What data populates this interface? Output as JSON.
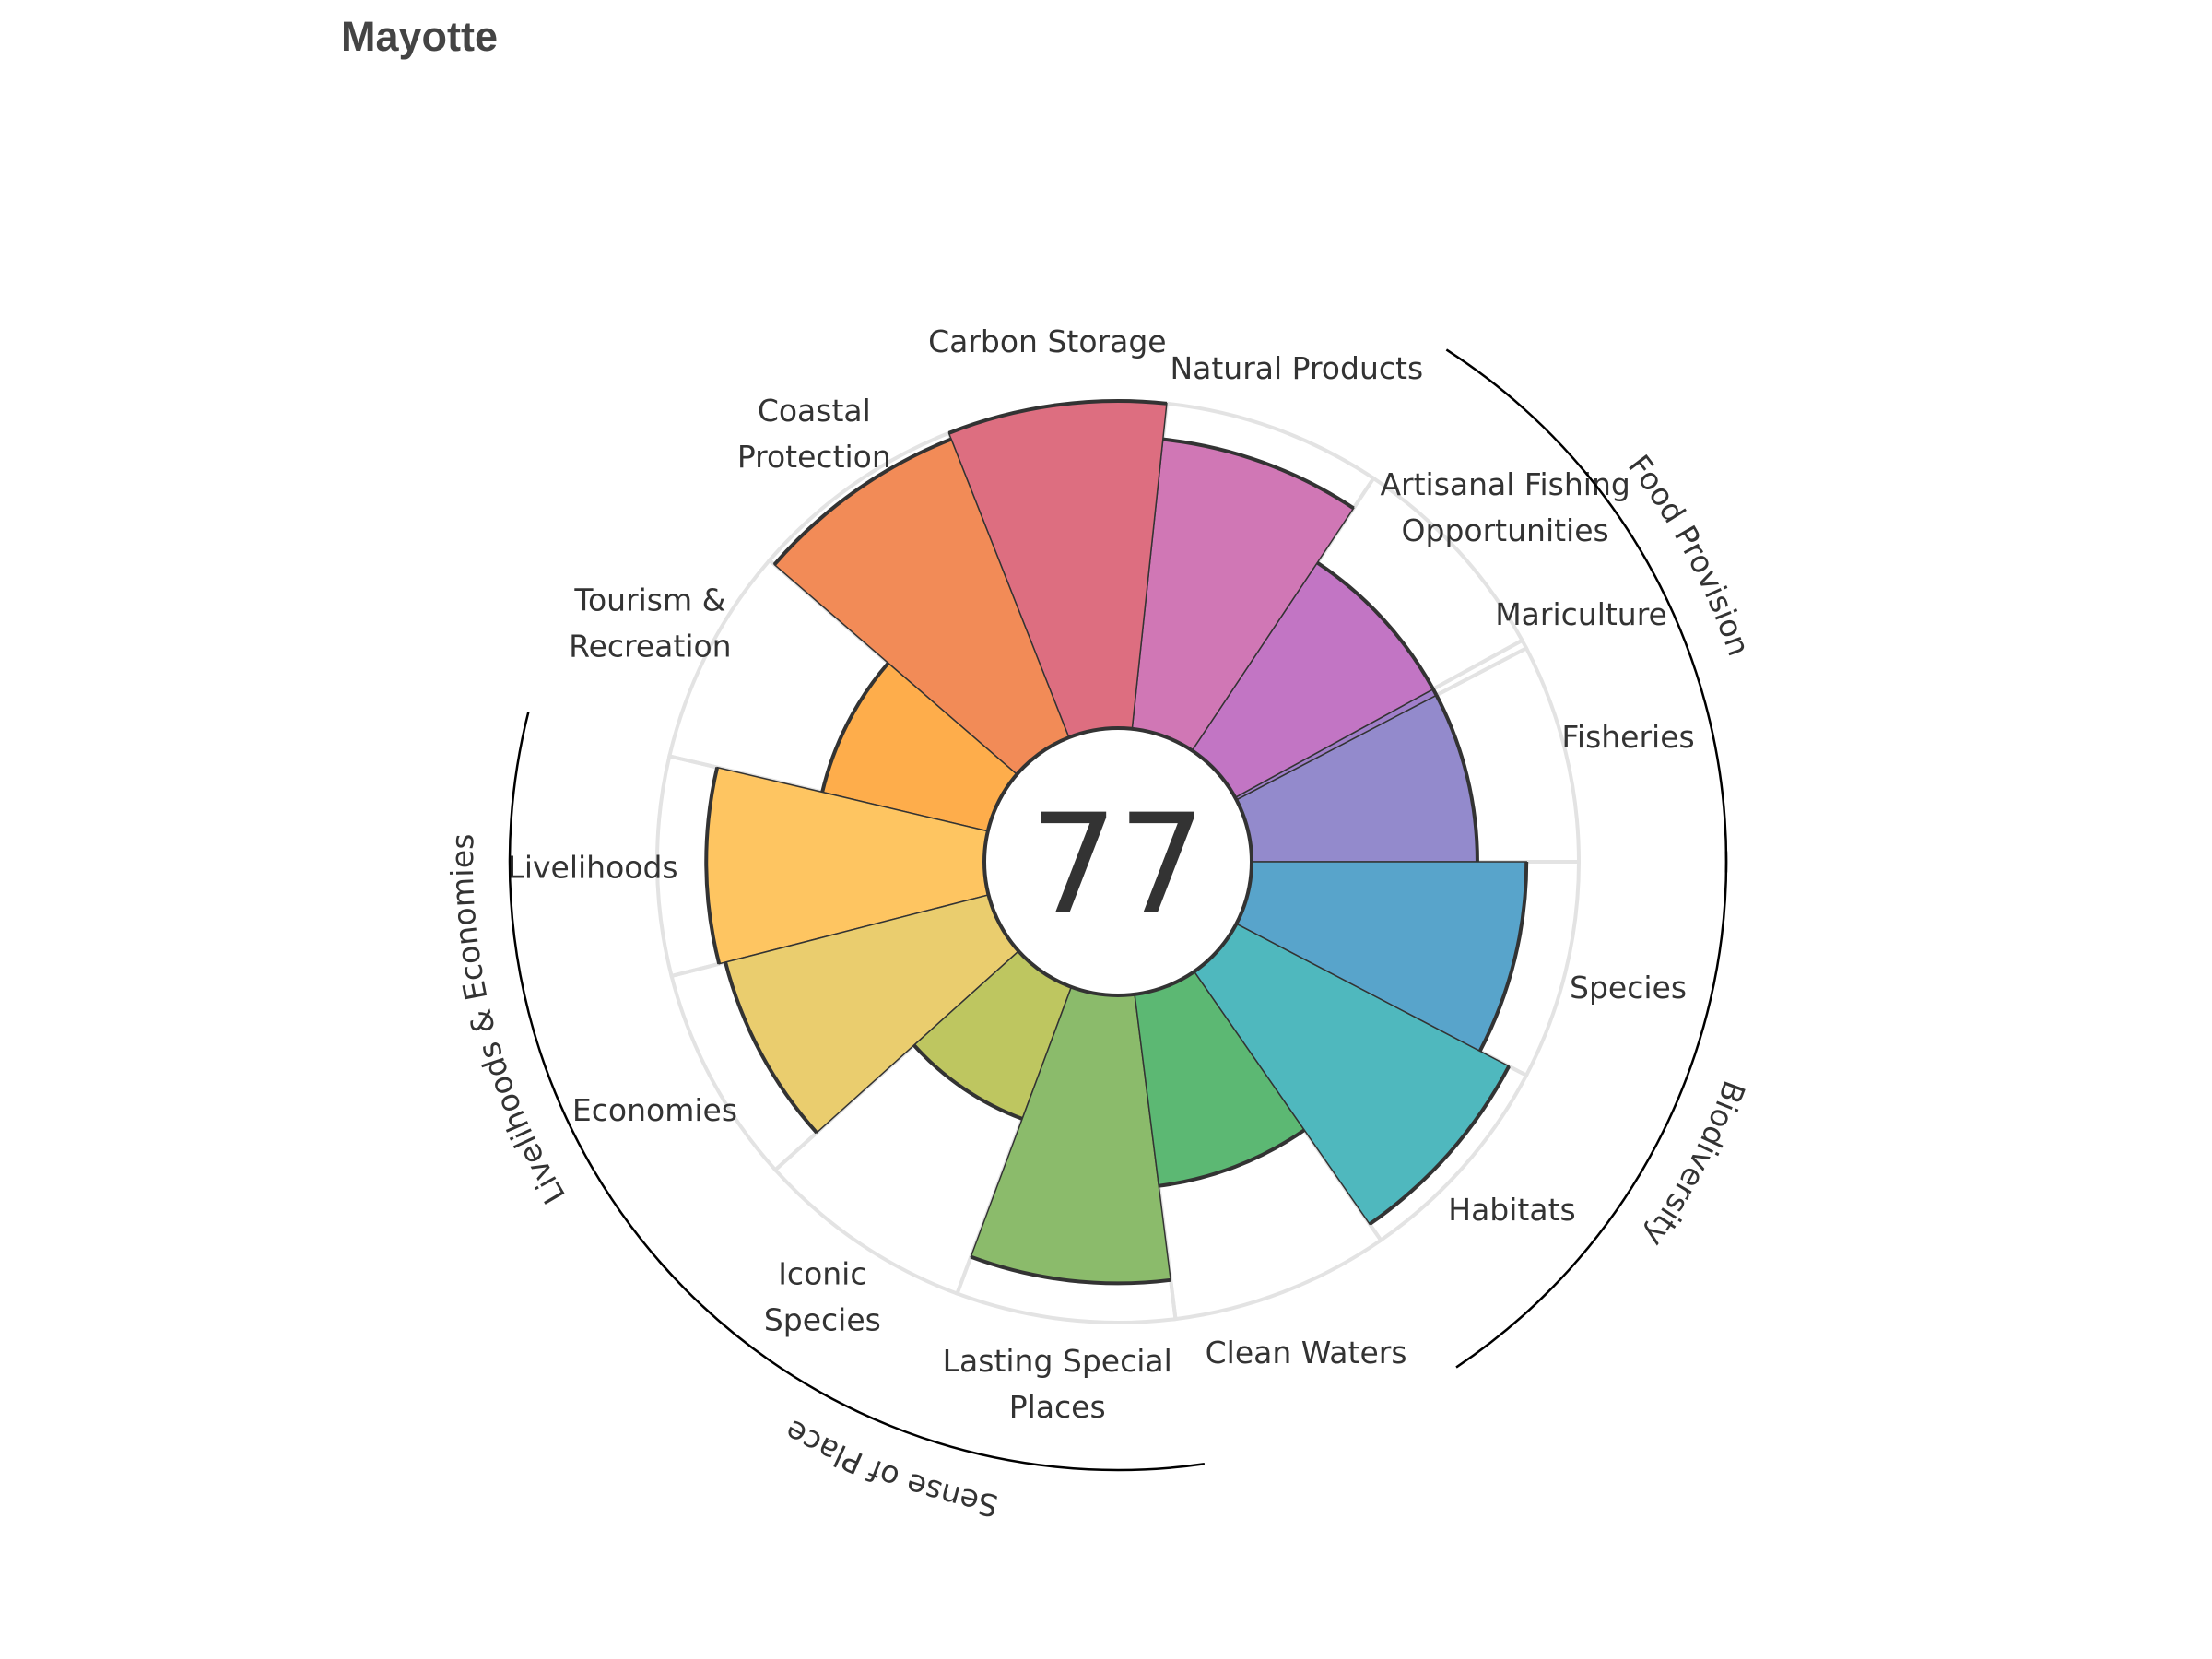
{
  "title": "Mayotte",
  "chart_data": {
    "type": "polar-bar",
    "title": "Mayotte",
    "center_score": "77",
    "rlim": [
      0,
      100
    ],
    "goals": [
      {
        "name": "Fisheries",
        "label": [
          "Fisheries"
        ],
        "value": 69,
        "weight": 1,
        "color": "#938ACC"
      },
      {
        "name": "Mariculture",
        "label": [
          "Mariculture"
        ],
        "value": 69,
        "weight": 0.04,
        "color": "#A07FCA"
      },
      {
        "name": "Artisanal Fishing Opportunities",
        "label": [
          "Artisanal Fishing",
          "Opportunities"
        ],
        "value": 69,
        "weight": 1,
        "color": "#C275C4"
      },
      {
        "name": "Natural Products",
        "label": [
          "Natural Products"
        ],
        "value": 89,
        "weight": 1,
        "color": "#D077B5"
      },
      {
        "name": "Carbon Storage",
        "label": [
          "Carbon Storage"
        ],
        "value": 100,
        "weight": 1,
        "color": "#DD6E80"
      },
      {
        "name": "Coastal Protection",
        "label": [
          "Coastal",
          "Protection"
        ],
        "value": 98,
        "weight": 1,
        "color": "#F28B57"
      },
      {
        "name": "Tourism & Recreation",
        "label": [
          "Tourism &",
          "Recreation"
        ],
        "value": 52,
        "weight": 1,
        "color": "#FEAD4B"
      },
      {
        "name": "Livelihoods",
        "label": [
          "Livelihoods"
        ],
        "value": 85,
        "weight": 1,
        "color": "#FEC561"
      },
      {
        "name": "Economies",
        "label": [
          "Economies"
        ],
        "value": 83,
        "weight": 1,
        "color": "#EACD6E"
      },
      {
        "name": "Iconic Species",
        "label": [
          "Iconic",
          "Species"
        ],
        "value": 43,
        "weight": 1,
        "color": "#BEC660"
      },
      {
        "name": "Lasting Special Places",
        "label": [
          "Lasting Special",
          "Places"
        ],
        "value": 88,
        "weight": 1,
        "color": "#8BBB6B"
      },
      {
        "name": "Clean Waters",
        "label": [
          "Clean Waters"
        ],
        "value": 59,
        "weight": 1,
        "color": "#5CB873"
      },
      {
        "name": "Habitats",
        "label": [
          "Habitats"
        ],
        "value": 94,
        "weight": 1,
        "color": "#4FB8BE"
      },
      {
        "name": "Species",
        "label": [
          "Species"
        ],
        "value": 84,
        "weight": 1,
        "color": "#58A4CB"
      }
    ],
    "groups": [
      {
        "name": "Food Provision",
        "members": [
          "Fisheries",
          "Mariculture",
          "Artisanal Fishing Opportunities"
        ]
      },
      {
        "name": "Biodiversity",
        "members": [
          "Habitats",
          "Species"
        ]
      },
      {
        "name": "Sense of Place",
        "members": [
          "Iconic Species",
          "Lasting Special Places"
        ]
      },
      {
        "name": "Livelihoods & Economies",
        "members": [
          "Livelihoods",
          "Economies"
        ]
      }
    ],
    "colors": {
      "outline": "#333333",
      "grid": "#E3E3E3"
    }
  }
}
